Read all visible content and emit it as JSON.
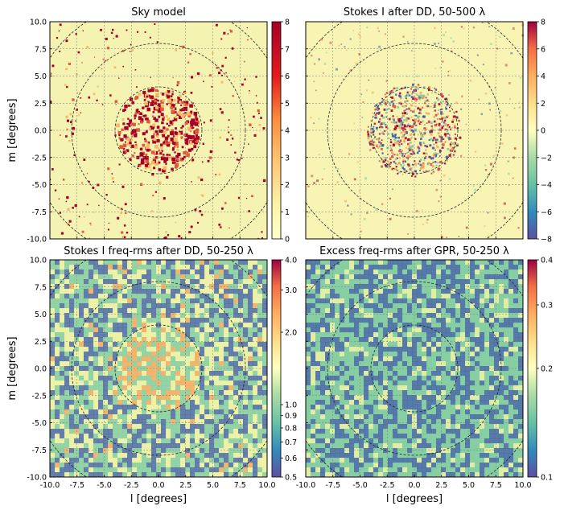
{
  "figure": {
    "xlabel": "l [degrees]",
    "ylabel": "m [degrees]"
  },
  "colors": {
    "sky_bg": "#f4f2b0",
    "source_dark": "#a50026",
    "source_mid": "#e35a3a",
    "source_light": "#f9b868",
    "blue": "#3b5ba8",
    "green": "#7ccba2",
    "yellow": "#f3f3a4",
    "orange": "#f7a359",
    "red": "#d53e4f"
  },
  "chart_data": [
    {
      "type": "heatmap",
      "id": "sky-model",
      "title": "Sky model",
      "xlim": [
        -10,
        10
      ],
      "ylim": [
        -10,
        10
      ],
      "xticks": [
        "-10.0",
        "-7.5",
        "-5.0",
        "-2.5",
        "0.0",
        "2.5",
        "5.0",
        "7.5",
        "10.0"
      ],
      "yticks": [
        "10.0",
        "7.5",
        "5.0",
        "2.5",
        "0.0",
        "-2.5",
        "-5.0",
        "-7.5",
        "-10.0"
      ],
      "colorbar": {
        "min": 0,
        "max": 8,
        "scale": "linear",
        "ticks": [
          "8",
          "7",
          "6",
          "5",
          "4",
          "3",
          "2",
          "1",
          "0"
        ],
        "colormap": "YlOrRd"
      },
      "circle_radii_deg": [
        4,
        8,
        12
      ]
    },
    {
      "type": "heatmap",
      "id": "stokes-i",
      "title": "Stokes I after DD, 50-500 λ",
      "xlim": [
        -10,
        10
      ],
      "ylim": [
        -10,
        10
      ],
      "colorbar": {
        "min": -8,
        "max": 8,
        "scale": "linear",
        "ticks": [
          "8",
          "6",
          "4",
          "2",
          "0",
          "−2",
          "−4",
          "−6",
          "−8"
        ],
        "colormap": "Spectral_r"
      },
      "circle_radii_deg": [
        4,
        8,
        12
      ]
    },
    {
      "type": "heatmap",
      "id": "freq-rms",
      "title": "Stokes I freq-rms after DD, 50-250 λ",
      "xlim": [
        -10,
        10
      ],
      "ylim": [
        -10,
        10
      ],
      "xticks": [
        "-10.0",
        "-7.5",
        "-5.0",
        "-2.5",
        "0.0",
        "2.5",
        "5.0",
        "7.5",
        "10.0"
      ],
      "yticks": [
        "10.0",
        "7.5",
        "5.0",
        "2.5",
        "0.0",
        "-2.5",
        "-5.0",
        "-7.5",
        "-10.0"
      ],
      "colorbar": {
        "min": 0.5,
        "max": 4.0,
        "scale": "log",
        "ticks": [
          "4.0",
          "3.0",
          "2.0",
          "1.0",
          "0.9",
          "0.8",
          "0.7",
          "0.6",
          "0.5"
        ],
        "colormap": "Spectral_r"
      },
      "circle_radii_deg": [
        4,
        8,
        12
      ]
    },
    {
      "type": "heatmap",
      "id": "excess",
      "title": "Excess freq-rms after GPR, 50-250 λ",
      "xlim": [
        -10,
        10
      ],
      "ylim": [
        -10,
        10
      ],
      "xticks": [
        "-10.0",
        "-7.5",
        "-5.0",
        "-2.5",
        "0.0",
        "2.5",
        "5.0",
        "7.5",
        "10.0"
      ],
      "colorbar": {
        "min": 0.1,
        "max": 0.4,
        "scale": "log",
        "ticks": [
          "0.4",
          "0.3",
          "0.2",
          "0.1"
        ],
        "colormap": "Spectral_r"
      },
      "circle_radii_deg": [
        4,
        8,
        12
      ]
    }
  ]
}
